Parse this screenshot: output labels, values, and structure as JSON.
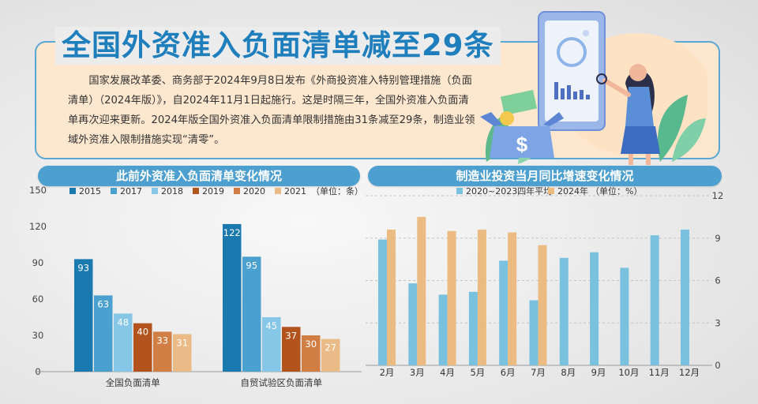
{
  "main_title": "全国外资准入负面清单减至29条",
  "intro": "国家发展改革委、商务部于2024年9月8日发布《外商投资准入特别管理措施（负面清单）（2024年版）》，自2024年11月1日起施行。这是时隔三年，全国外资准入负面清单再次迎来更新。2024年版全国外资准入负面清单限制措施由31条减至29条，制造业领域外资准入限制措施实现“清零”。",
  "colors": {
    "2015": "#1a7ab0",
    "2017": "#4aa0cf",
    "2018": "#86c6e6",
    "2019": "#b3541e",
    "2020": "#d17e45",
    "2021": "#ebbb87",
    "avg": "#79c1de",
    "y2024": "#ebbb82",
    "title": "#1f7fbd",
    "section": "#4d9fcf"
  },
  "chart_data": [
    {
      "type": "bar",
      "title": "此前外资准入负面清单变化情况",
      "unit_note": "（单位：条）",
      "categories": [
        "全国负面清单",
        "自贸试验区负面清单"
      ],
      "series": [
        {
          "name": "2015",
          "values": [
            93,
            122
          ]
        },
        {
          "name": "2017",
          "values": [
            63,
            95
          ]
        },
        {
          "name": "2018",
          "values": [
            48,
            45
          ]
        },
        {
          "name": "2019",
          "values": [
            40,
            37
          ]
        },
        {
          "name": "2020",
          "values": [
            33,
            30
          ]
        },
        {
          "name": "2021",
          "values": [
            31,
            27
          ]
        }
      ],
      "ylim": [
        0,
        150
      ],
      "yticks": [
        0,
        30,
        60,
        90,
        120,
        150
      ],
      "legend": "top"
    },
    {
      "type": "bar",
      "title": "制造业投资当月同比增速变化情况",
      "unit_note": "（单位：%）",
      "categories": [
        "2月",
        "3月",
        "4月",
        "5月",
        "6月",
        "7月",
        "8月",
        "9月",
        "10月",
        "11月",
        "12月"
      ],
      "series": [
        {
          "name": "2020~2023四年平均",
          "values": [
            8.9,
            5.8,
            5.0,
            5.2,
            7.4,
            4.6,
            7.6,
            8.0,
            6.9,
            9.2,
            9.6
          ]
        },
        {
          "name": "2024年",
          "values": [
            9.6,
            10.5,
            9.5,
            9.6,
            9.4,
            8.5,
            null,
            null,
            null,
            null,
            null
          ]
        }
      ],
      "ylim": [
        0,
        12
      ],
      "yticks": [
        0,
        3,
        6,
        9,
        12
      ],
      "y_axis_side": "right",
      "legend": "top"
    }
  ]
}
